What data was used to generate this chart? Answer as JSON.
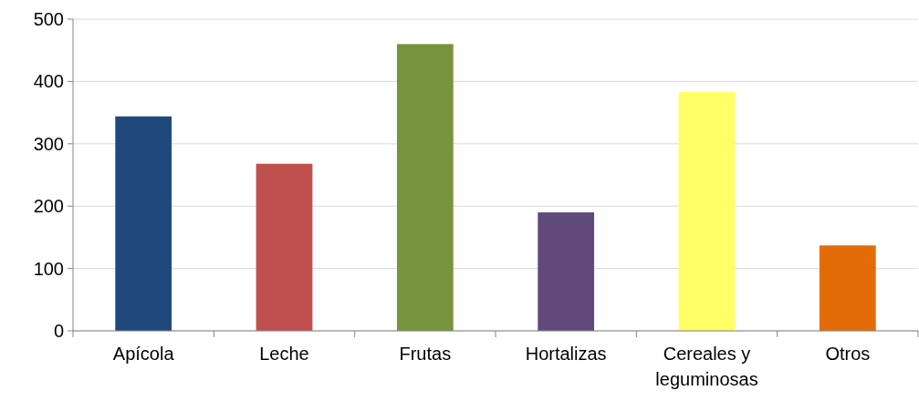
{
  "chart_data": {
    "type": "bar",
    "categories": [
      "Apícola",
      "Leche",
      "Frutas",
      "Hortalizas",
      "Cereales y leguminosas",
      "Otros"
    ],
    "values": [
      344,
      268,
      460,
      190,
      383,
      137
    ],
    "colors": [
      "#1f497d",
      "#c0504d",
      "#77933c",
      "#604a7b",
      "#ffff66",
      "#e36c09"
    ],
    "ylim": [
      0,
      500
    ],
    "yticks": [
      0,
      100,
      200,
      300,
      400,
      500
    ],
    "grid": "y"
  }
}
